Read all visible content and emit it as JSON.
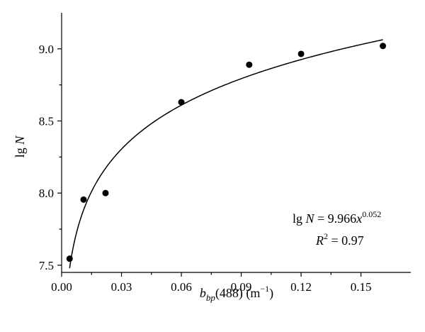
{
  "chart_data": {
    "type": "scatter",
    "xlabel_main": "b",
    "xlabel_sub": "bp",
    "xlabel_rest": "(488) (m",
    "xlabel_sup": "−1",
    "xlabel_close": ")",
    "ylabel_main": "lg",
    "ylabel_var": "N",
    "xlim": [
      0.0,
      0.175
    ],
    "ylim": [
      7.45,
      9.25
    ],
    "xticks": [
      0.0,
      0.03,
      0.06,
      0.09,
      0.12,
      0.15
    ],
    "xtick_labels": [
      "0.00",
      "0.03",
      "0.06",
      "0.09",
      "0.12",
      "0.15"
    ],
    "yticks": [
      7.5,
      8.0,
      8.5,
      9.0
    ],
    "ytick_labels": [
      "7.5",
      "8.0",
      "8.5",
      "9.0"
    ],
    "points": [
      {
        "x": 0.004,
        "y": 7.545
      },
      {
        "x": 0.011,
        "y": 7.955
      },
      {
        "x": 0.022,
        "y": 8.0
      },
      {
        "x": 0.06,
        "y": 8.63
      },
      {
        "x": 0.094,
        "y": 8.89
      },
      {
        "x": 0.12,
        "y": 8.965
      },
      {
        "x": 0.161,
        "y": 9.02
      }
    ],
    "fit": {
      "a": 9.966,
      "b": 0.052,
      "x_min": 0.004,
      "x_max": 0.161
    },
    "equation": {
      "lhs_main": "lg",
      "lhs_var": "N",
      "rhs": " = 9.966",
      "rhs_var": "x",
      "exponent": "0.052"
    },
    "r2": {
      "var": "R",
      "sup": "2",
      "rest": " = 0.97"
    },
    "grid": false
  }
}
